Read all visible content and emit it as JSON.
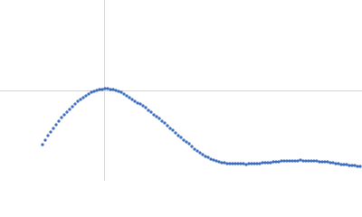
{
  "chart_data": {
    "type": "scatter",
    "color": "#3b6cc0",
    "grid": true,
    "xlim": [
      0,
      400
    ],
    "ylim": [
      0,
      200
    ],
    "xticks": [
      115
    ],
    "yticks": [
      100
    ],
    "x": [
      47,
      50,
      53,
      56,
      59,
      62,
      65,
      68,
      71,
      74,
      77,
      80,
      83,
      86,
      89,
      92,
      95,
      98,
      101,
      104,
      107,
      110,
      113,
      116,
      119,
      122,
      125,
      128,
      131,
      134,
      137,
      140,
      143,
      146,
      149,
      152,
      155,
      158,
      161,
      164,
      167,
      170,
      173,
      176,
      179,
      182,
      185,
      188,
      191,
      194,
      197,
      200,
      203,
      206,
      209,
      212,
      215,
      218,
      221,
      224,
      227,
      230,
      233,
      236,
      239,
      242,
      245,
      248,
      251,
      254,
      257,
      260,
      263,
      266,
      269,
      272,
      275,
      278,
      281,
      284,
      287,
      290,
      293,
      296,
      299,
      302,
      305,
      308,
      311,
      314,
      317,
      320,
      323,
      326,
      329,
      332,
      335,
      338,
      341,
      344,
      347,
      350,
      353,
      356,
      359,
      362,
      365,
      368,
      371,
      374,
      377,
      380,
      383,
      386,
      389,
      392,
      395,
      398
    ],
    "values": [
      40,
      45,
      50,
      54,
      58,
      62,
      66,
      70,
      73,
      76,
      79,
      82,
      85,
      88,
      90,
      92,
      94,
      96,
      98,
      99,
      100,
      101,
      101,
      102,
      102,
      101,
      101,
      100,
      99,
      98,
      96,
      94,
      92,
      90,
      88,
      86,
      85,
      83,
      81,
      78,
      76,
      73,
      71,
      69,
      66,
      64,
      61,
      58,
      56,
      53,
      50,
      48,
      45,
      43,
      41,
      38,
      35,
      33,
      31,
      29,
      27,
      26,
      24,
      23,
      22,
      21,
      20,
      20,
      19,
      19,
      19,
      19,
      19,
      19,
      19,
      18,
      19,
      19,
      19,
      19,
      19,
      20,
      20,
      20,
      20,
      21,
      21,
      21,
      22,
      22,
      22,
      22,
      22,
      22,
      22,
      23,
      22,
      22,
      22,
      22,
      22,
      22,
      21,
      21,
      21,
      21,
      20,
      20,
      19,
      19,
      18,
      18,
      18,
      17,
      17,
      17,
      16,
      16
    ]
  }
}
